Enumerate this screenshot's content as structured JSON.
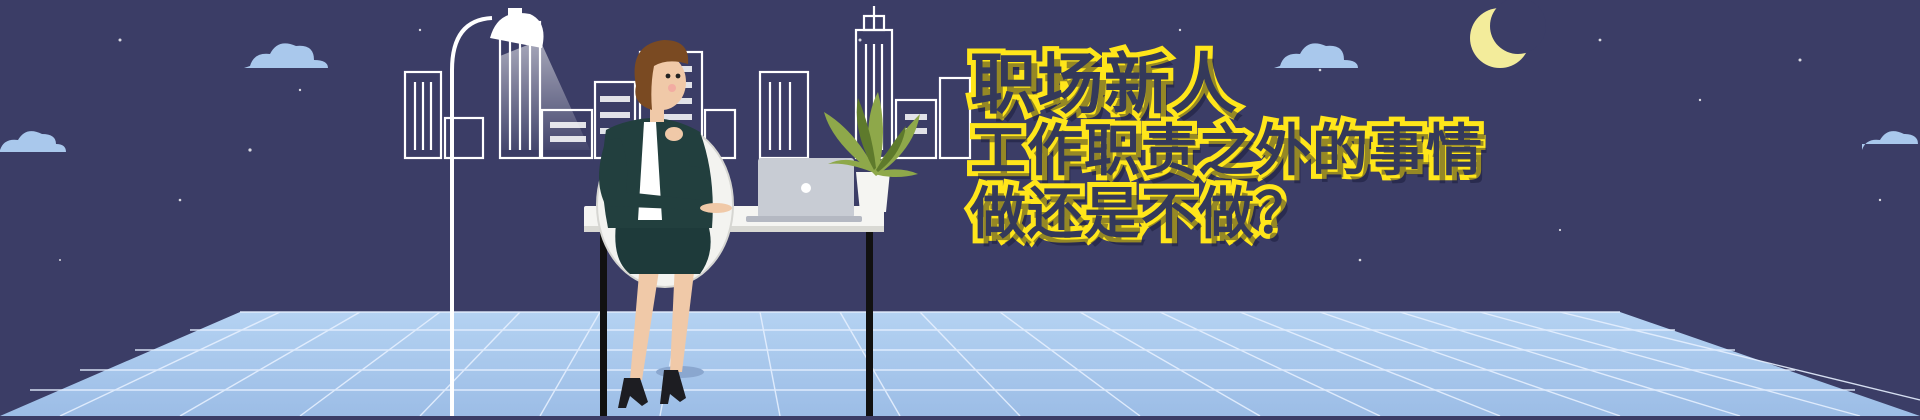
{
  "banner": {
    "headline_line1": "职场新人",
    "headline_line2": "工作职责之外的事情",
    "headline_line3": "做还是不做？"
  },
  "colors": {
    "sky": "#3b3d66",
    "floor": "#a9c8ec",
    "grid_line": "#e6f0ff",
    "headline_outline": "#ffe61a",
    "headline_text": "#34395a",
    "building_outline": "#ffffff",
    "moon": "#f3ec9b"
  },
  "icons": [
    "moon-icon",
    "cloud-icon",
    "desk-lamp-icon",
    "laptop-icon",
    "potted-plant-icon"
  ]
}
